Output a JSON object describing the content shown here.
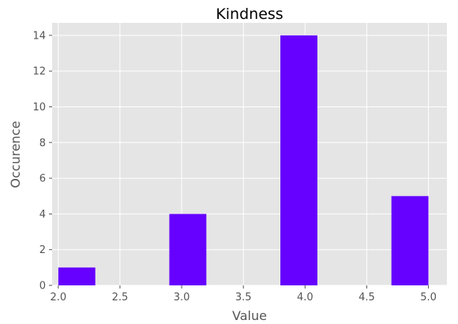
{
  "chart_data": {
    "type": "bar",
    "title": "Kindness",
    "xlabel": "Value",
    "ylabel": "Occurence",
    "bins": [
      {
        "start": 2.0,
        "end": 2.3,
        "count": 1
      },
      {
        "start": 2.9,
        "end": 3.2,
        "count": 4
      },
      {
        "start": 3.8,
        "end": 4.1,
        "count": 14
      },
      {
        "start": 4.7,
        "end": 5.0,
        "count": 5
      }
    ],
    "xlim": [
      1.95,
      5.15
    ],
    "ylim": [
      0,
      14.7
    ],
    "xticks": [
      "2.0",
      "2.5",
      "3.0",
      "3.5",
      "4.0",
      "4.5",
      "5.0"
    ],
    "yticks": [
      "0",
      "2",
      "4",
      "6",
      "8",
      "10",
      "12",
      "14"
    ],
    "bar_color": "#6600ff",
    "background_color": "#e5e5e5",
    "grid": true
  }
}
